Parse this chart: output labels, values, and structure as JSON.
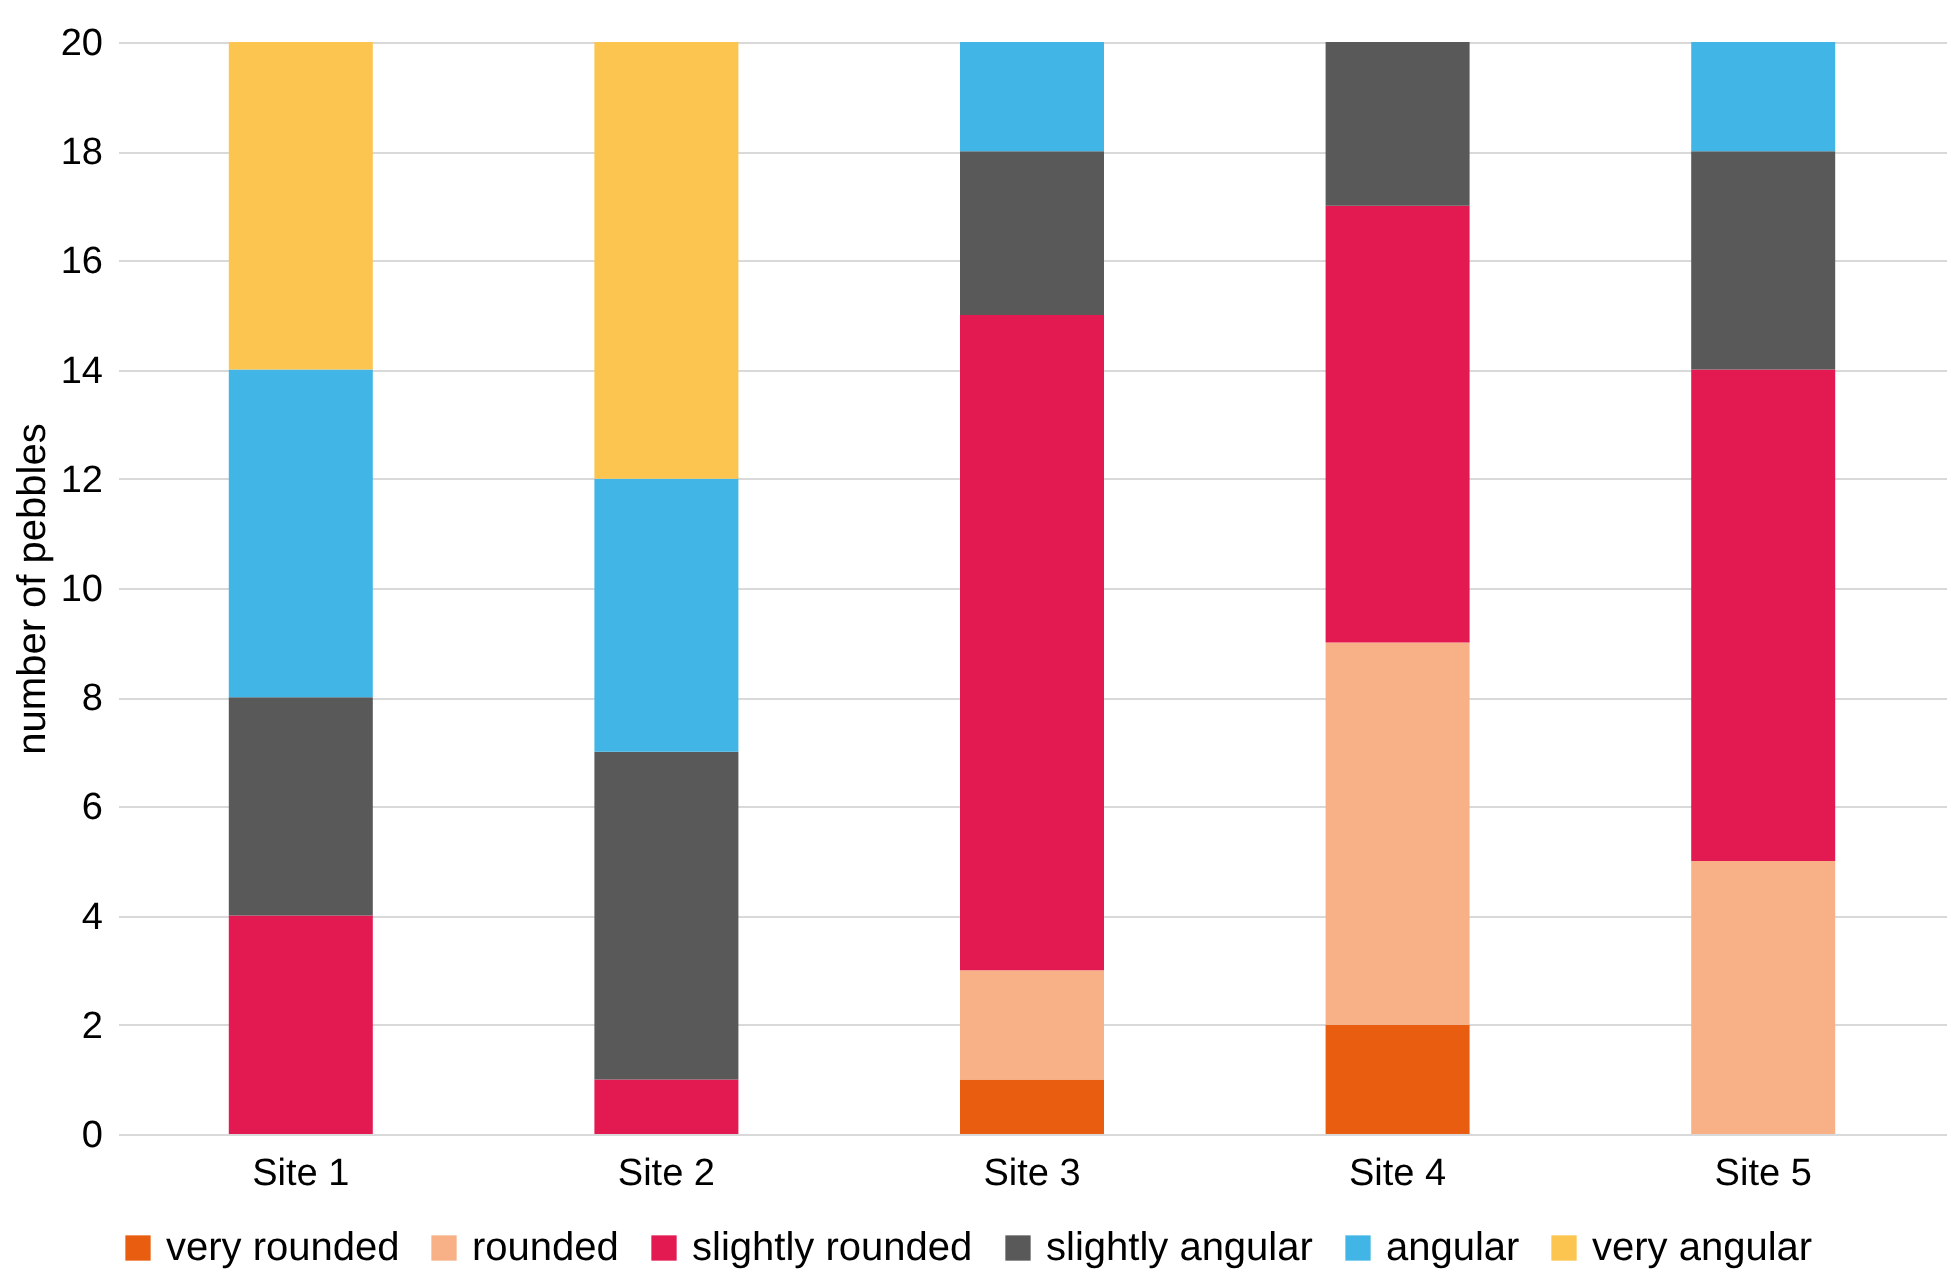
{
  "chart_data": {
    "type": "bar",
    "stacked": true,
    "ylabel": "number of pebbles",
    "categories": [
      "Site 1",
      "Site 2",
      "Site 3",
      "Site 4",
      "Site 5"
    ],
    "series": [
      {
        "name": "very rounded",
        "color": "#e85d0f",
        "values": [
          0,
          0,
          1,
          2,
          0
        ]
      },
      {
        "name": "rounded",
        "color": "#f8b086",
        "values": [
          0,
          0,
          2,
          7,
          5
        ]
      },
      {
        "name": "slightly rounded",
        "color": "#e31a51",
        "values": [
          4,
          1,
          12,
          8,
          9
        ]
      },
      {
        "name": "slightly angular",
        "color": "#595959",
        "values": [
          4,
          6,
          3,
          3,
          4
        ]
      },
      {
        "name": "angular",
        "color": "#41b6e6",
        "values": [
          6,
          5,
          2,
          0,
          2
        ]
      },
      {
        "name": "very angular",
        "color": "#fcc550",
        "values": [
          6,
          8,
          0,
          0,
          0
        ]
      }
    ],
    "ylim": [
      0,
      20
    ],
    "yticks": [
      0,
      2,
      4,
      6,
      8,
      10,
      12,
      14,
      16,
      18,
      20
    ],
    "grid": "y",
    "legend": "bottom"
  }
}
